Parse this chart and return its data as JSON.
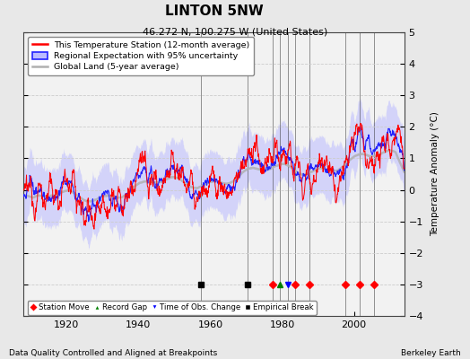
{
  "title": "LINTON 5NW",
  "subtitle": "46.272 N, 100.275 W (United States)",
  "ylabel": "Temperature Anomaly (°C)",
  "xlabel_left": "Data Quality Controlled and Aligned at Breakpoints",
  "xlabel_right": "Berkeley Earth",
  "ylim": [
    -4,
    5
  ],
  "xlim": [
    1908,
    2014
  ],
  "xticks": [
    1920,
    1940,
    1960,
    1980,
    2000
  ],
  "yticks": [
    -4,
    -3,
    -2,
    -1,
    0,
    1,
    2,
    3,
    4,
    5
  ],
  "bg_color": "#e8e8e8",
  "plot_bg_color": "#f2f2f2",
  "station_color": "#ff0000",
  "regional_color": "#2222ff",
  "regional_fill_color": "#bbbbff",
  "global_color": "#b0b0b0",
  "station_move_times": [
    1977.5,
    1983.5,
    1987.5,
    1997.5,
    2001.5,
    2005.5
  ],
  "record_gap_times": [
    1979.5
  ],
  "obs_change_times": [
    1981.5
  ],
  "empirical_break_times": [
    1957.5,
    1970.5
  ],
  "legend_entries": [
    "This Temperature Station (12-month average)",
    "Regional Expectation with 95% uncertainty",
    "Global Land (5-year average)"
  ],
  "marker_legend_entries": [
    "Station Move",
    "Record Gap",
    "Time of Obs. Change",
    "Empirical Break"
  ]
}
